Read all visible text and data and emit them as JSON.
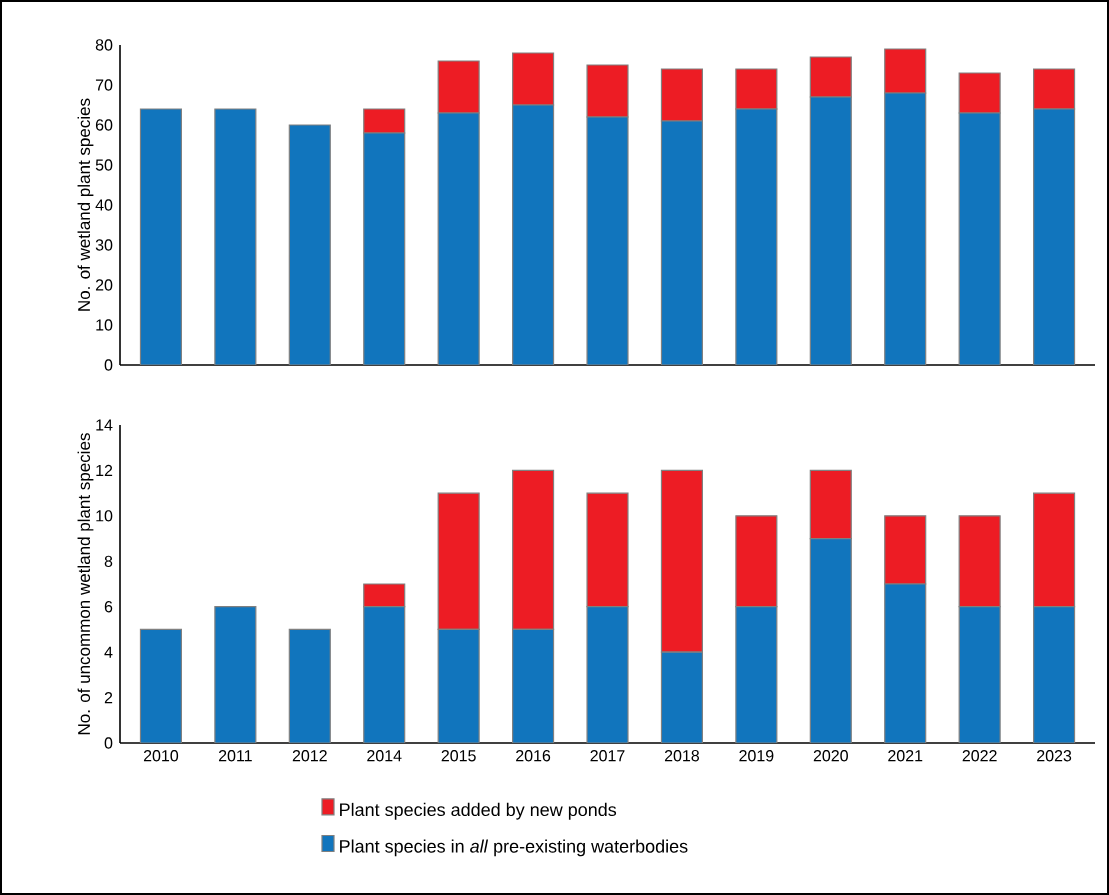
{
  "chart_data": [
    {
      "type": "bar",
      "stacked": true,
      "ylabel": "No. of wetland  plant species",
      "categories": [
        "2010",
        "2011",
        "2012",
        "2014",
        "2015",
        "2016",
        "2017",
        "2018",
        "2019",
        "2020",
        "2021",
        "2022",
        "2023"
      ],
      "ylim": [
        0,
        80
      ],
      "yticks": [
        0,
        10,
        20,
        30,
        40,
        50,
        60,
        70,
        80
      ],
      "tick_labels": "y",
      "series": [
        {
          "color": "#1175bd",
          "values": [
            64,
            64,
            60,
            58,
            63,
            65,
            62,
            61,
            64,
            67,
            68,
            63,
            64
          ]
        },
        {
          "color": "#ed1c24",
          "values": [
            0,
            0,
            0,
            6,
            13,
            13,
            13,
            13,
            10,
            10,
            11,
            10,
            10
          ]
        }
      ]
    },
    {
      "type": "bar",
      "stacked": true,
      "ylabel": "No. of uncommon wetland plant species",
      "categories": [
        "2010",
        "2011",
        "2012",
        "2014",
        "2015",
        "2016",
        "2017",
        "2018",
        "2019",
        "2020",
        "2021",
        "2022",
        "2023"
      ],
      "ylim": [
        0,
        14
      ],
      "yticks": [
        0,
        2,
        4,
        6,
        8,
        10,
        12,
        14
      ],
      "legend": "bottom",
      "series": [
        {
          "name": "Plant species in *all* pre-existing waterbodies",
          "color": "#1175bd",
          "values": [
            5,
            6,
            5,
            6,
            5,
            5,
            6,
            4,
            6,
            9,
            7,
            6,
            6
          ]
        },
        {
          "name": "Plant species added by new ponds",
          "color": "#ed1c24",
          "values": [
            0,
            0,
            0,
            1,
            6,
            7,
            5,
            8,
            4,
            3,
            3,
            4,
            5
          ]
        }
      ]
    }
  ]
}
